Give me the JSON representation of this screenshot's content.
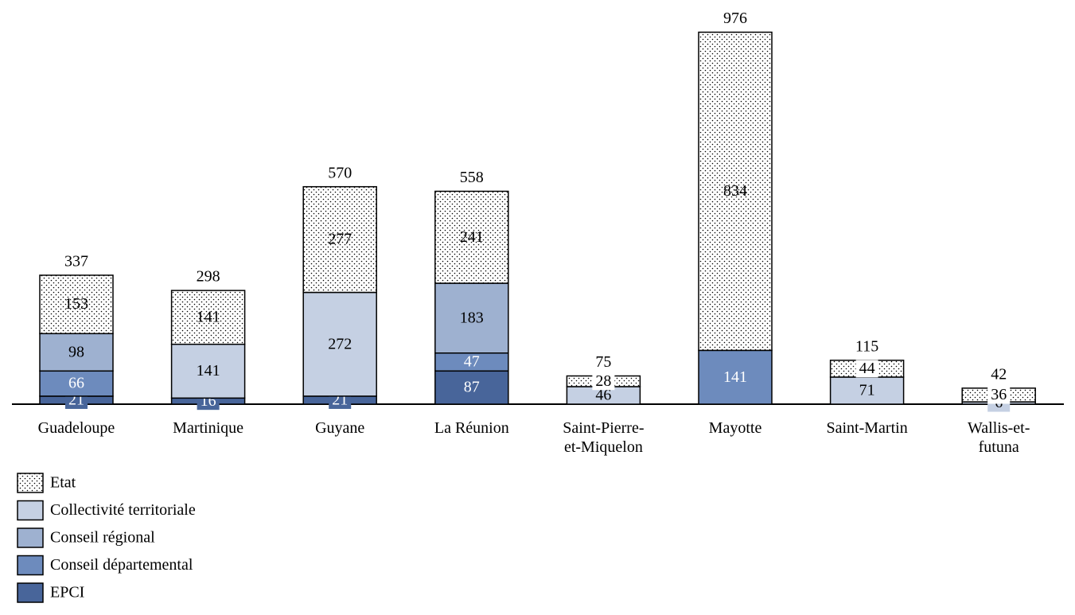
{
  "chart_data": {
    "type": "stacked_bar",
    "categories": [
      "Guadeloupe",
      "Martinique",
      "Guyane",
      "La Réunion",
      "Saint-Pierre-et-Miquelon",
      "Mayotte",
      "Saint-Martin",
      "Wallis-et-futuna"
    ],
    "series": [
      {
        "name": "Etat",
        "color": "#ffffff",
        "pattern": "dots",
        "values": [
          153,
          141,
          277,
          241,
          28,
          834,
          44,
          36
        ]
      },
      {
        "name": "Collectivité territoriale",
        "color": "#c5d0e3",
        "values": [
          null,
          141,
          272,
          null,
          46,
          null,
          71,
          6
        ]
      },
      {
        "name": "Conseil régional",
        "color": "#9eb1d0",
        "values": [
          98,
          null,
          null,
          183,
          null,
          null,
          null,
          null
        ]
      },
      {
        "name": "Conseil départemental",
        "color": "#6d8bbd",
        "values": [
          66,
          null,
          null,
          47,
          null,
          141,
          null,
          null
        ]
      },
      {
        "name": "EPCI",
        "color": "#48659a",
        "values": [
          21,
          16,
          21,
          87,
          null,
          null,
          null,
          null
        ]
      }
    ],
    "totals": [
      337,
      298,
      570,
      558,
      75,
      976,
      115,
      42
    ]
  }
}
